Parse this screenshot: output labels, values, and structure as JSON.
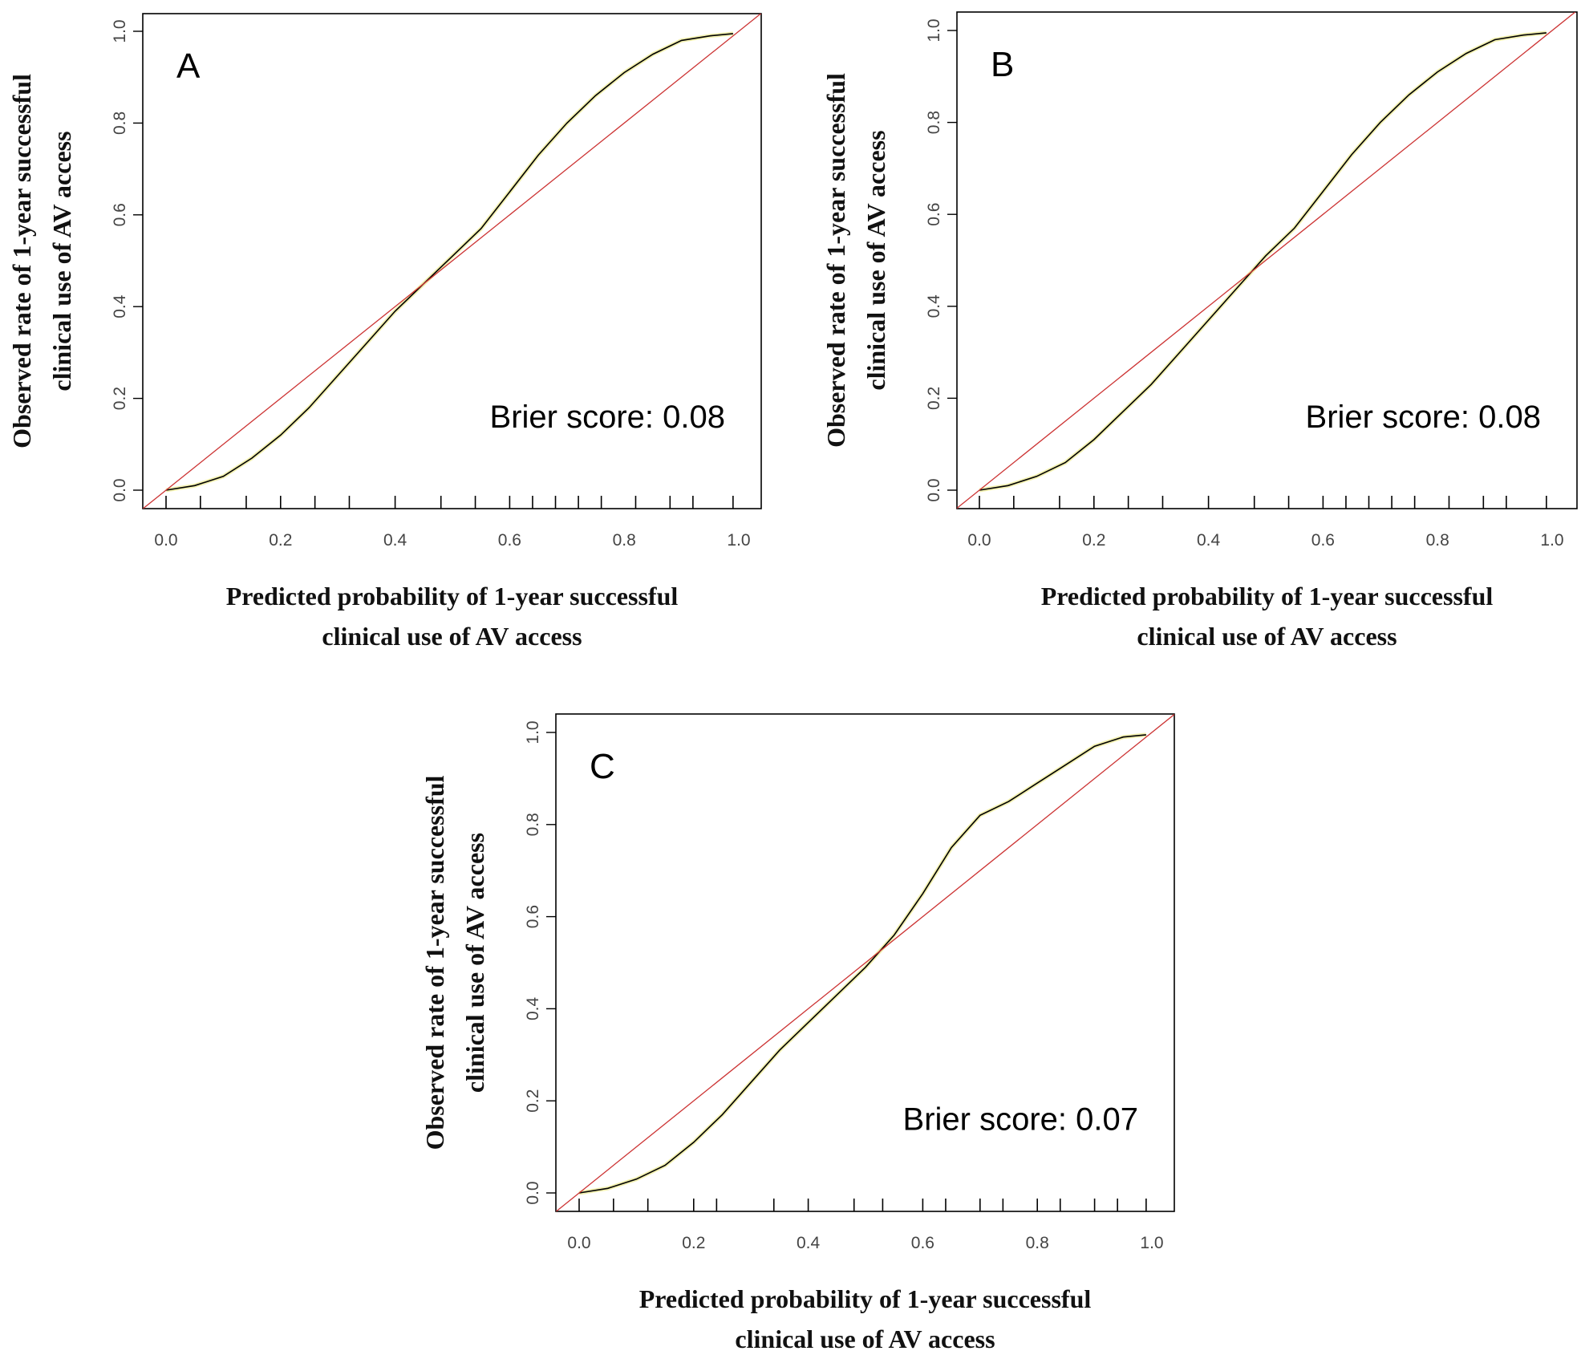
{
  "chart_data": [
    {
      "type": "line",
      "panel_label": "A",
      "annotation": "Brier score: 0.08",
      "xlabel": [
        "Predicted probability of 1-year successful",
        "clinical use of AV access"
      ],
      "ylabel": [
        "Observed rate of 1-year successful",
        "clinical use of AV access"
      ],
      "xlim": [
        0,
        1
      ],
      "ylim": [
        0,
        1
      ],
      "xticks": [
        "0.0",
        "0.2",
        "0.4",
        "0.6",
        "0.8",
        "1.0"
      ],
      "yticks": [
        "0.0",
        "0.2",
        "0.4",
        "0.6",
        "0.8",
        "1.0"
      ],
      "rug_x": [
        0.0,
        0.06,
        0.14,
        0.2,
        0.26,
        0.32,
        0.4,
        0.48,
        0.54,
        0.6,
        0.64,
        0.68,
        0.72,
        0.76,
        0.82,
        0.88,
        0.92,
        0.99
      ],
      "series": [
        {
          "role": "calibration",
          "color": "#000000",
          "x": [
            0.0,
            0.05,
            0.1,
            0.15,
            0.2,
            0.25,
            0.3,
            0.35,
            0.4,
            0.45,
            0.5,
            0.55,
            0.6,
            0.65,
            0.7,
            0.75,
            0.8,
            0.85,
            0.9,
            0.95,
            0.99
          ],
          "y": [
            0.0,
            0.01,
            0.03,
            0.07,
            0.12,
            0.18,
            0.25,
            0.32,
            0.39,
            0.45,
            0.51,
            0.57,
            0.65,
            0.73,
            0.8,
            0.86,
            0.91,
            0.95,
            0.98,
            0.99,
            0.995
          ]
        },
        {
          "role": "reference",
          "color": "#cc3333",
          "x": [
            -0.04,
            1.04
          ],
          "y": [
            -0.04,
            1.04
          ]
        }
      ]
    },
    {
      "type": "line",
      "panel_label": "B",
      "annotation": "Brier score: 0.08",
      "xlabel": [
        "Predicted probability of 1-year successful",
        "clinical use of AV access"
      ],
      "ylabel": [
        "Observed rate of 1-year successful",
        "clinical use of AV access"
      ],
      "xlim": [
        0,
        1
      ],
      "ylim": [
        0,
        1
      ],
      "xticks": [
        "0.0",
        "0.2",
        "0.4",
        "0.6",
        "0.8",
        "1.0"
      ],
      "yticks": [
        "0.0",
        "0.2",
        "0.4",
        "0.6",
        "0.8",
        "1.0"
      ],
      "rug_x": [
        0.0,
        0.06,
        0.14,
        0.2,
        0.26,
        0.32,
        0.4,
        0.48,
        0.54,
        0.6,
        0.64,
        0.68,
        0.72,
        0.76,
        0.82,
        0.88,
        0.92,
        0.99
      ],
      "series": [
        {
          "role": "calibration",
          "color": "#000000",
          "x": [
            0.0,
            0.05,
            0.1,
            0.15,
            0.2,
            0.25,
            0.3,
            0.35,
            0.4,
            0.45,
            0.5,
            0.55,
            0.6,
            0.65,
            0.7,
            0.75,
            0.8,
            0.85,
            0.9,
            0.95,
            0.99
          ],
          "y": [
            0.0,
            0.01,
            0.03,
            0.06,
            0.11,
            0.17,
            0.23,
            0.3,
            0.37,
            0.44,
            0.51,
            0.57,
            0.65,
            0.73,
            0.8,
            0.86,
            0.91,
            0.95,
            0.98,
            0.99,
            0.995
          ]
        },
        {
          "role": "reference",
          "color": "#cc3333",
          "x": [
            -0.04,
            1.04
          ],
          "y": [
            -0.04,
            1.04
          ]
        }
      ]
    },
    {
      "type": "line",
      "panel_label": "C",
      "annotation": "Brier score: 0.07",
      "xlabel": [
        "Predicted probability of 1-year successful",
        "clinical use of AV access"
      ],
      "ylabel": [
        "Observed rate of 1-year successful",
        "clinical use of AV access"
      ],
      "xlim": [
        0,
        1
      ],
      "ylim": [
        0,
        1
      ],
      "xticks": [
        "0.0",
        "0.2",
        "0.4",
        "0.6",
        "0.8",
        "1.0"
      ],
      "yticks": [
        "0.0",
        "0.2",
        "0.4",
        "0.6",
        "0.8",
        "1.0"
      ],
      "rug_x": [
        0.0,
        0.06,
        0.12,
        0.2,
        0.24,
        0.34,
        0.4,
        0.48,
        0.53,
        0.6,
        0.64,
        0.7,
        0.74,
        0.8,
        0.84,
        0.9,
        0.94,
        0.99
      ],
      "series": [
        {
          "role": "calibration",
          "color": "#000000",
          "x": [
            0.0,
            0.05,
            0.1,
            0.15,
            0.2,
            0.25,
            0.3,
            0.35,
            0.4,
            0.45,
            0.5,
            0.55,
            0.6,
            0.65,
            0.7,
            0.75,
            0.8,
            0.85,
            0.9,
            0.95,
            0.99
          ],
          "y": [
            0.0,
            0.01,
            0.03,
            0.06,
            0.11,
            0.17,
            0.24,
            0.31,
            0.37,
            0.43,
            0.49,
            0.56,
            0.65,
            0.75,
            0.82,
            0.85,
            0.89,
            0.93,
            0.97,
            0.99,
            0.995
          ]
        },
        {
          "role": "reference",
          "color": "#cc3333",
          "x": [
            -0.04,
            1.04
          ],
          "y": [
            -0.04,
            1.04
          ]
        }
      ]
    }
  ]
}
